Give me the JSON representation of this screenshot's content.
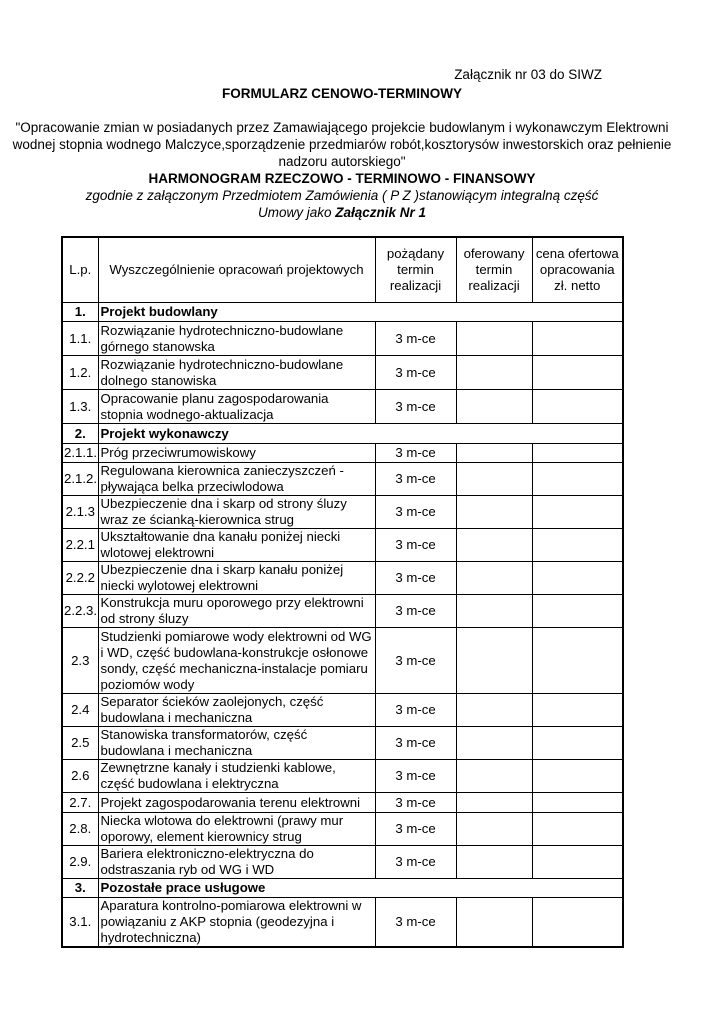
{
  "header": {
    "annex": "Załącznik nr 03 do SIWZ",
    "title": "FORMULARZ CENOWO-TERMINOWY",
    "description": "\"Opracowanie zmian w posiadanych przez Zamawiającego projekcie budowlanym i wykonawczym Elektrowni wodnej stopnia wodnego Malczyce,sporządzenie przedmiarów robót,kosztorysów inwestorskich oraz pełnienie nadzoru autorskiego\"",
    "harmonogram": "HARMONOGRAM  RZECZOWO - TERMINOWO - FINANSOWY",
    "zgodnie": "zgodnie z załączonym Przedmiotem Zamówienia ( P Z )stanowiącym integralną część",
    "umowy_prefix": "Umowy jako ",
    "umowy_bold": "Załącznik Nr 1"
  },
  "table": {
    "columns": [
      "L.p.",
      "Wyszczególnienie opracowań projektowych",
      "pożądany termin realizacji",
      "oferowany termin realizacji",
      "cena ofertowa opracowania zł. netto"
    ],
    "rows": [
      {
        "lp": "1.",
        "name": "Projekt budowlany",
        "section": true
      },
      {
        "lp": "1.1.",
        "name": "Rozwiązanie hydrotechniczno-budowlane górnego stanowska",
        "term": "3 m-ce",
        "offered": "",
        "price": ""
      },
      {
        "lp": "1.2.",
        "name": "Rozwiązanie hydrotechniczno-budowlane dolnego stanowiska",
        "term": "3 m-ce",
        "offered": "",
        "price": ""
      },
      {
        "lp": "1.3.",
        "name": "Opracowanie planu zagospodarowania stopnia wodnego-aktualizacja",
        "term": "3 m-ce",
        "offered": "",
        "price": ""
      },
      {
        "lp": "2.",
        "name": "Projekt wykonawczy",
        "section": true
      },
      {
        "lp": "2.1.1.",
        "name": "Próg przeciwrumowiskowy",
        "term": "3 m-ce",
        "offered": "",
        "price": ""
      },
      {
        "lp": "2.1.2.",
        "name": "Regulowana kierownica zanieczyszczeń - pływająca belka przeciwlodowa",
        "term": "3 m-ce",
        "offered": "",
        "price": ""
      },
      {
        "lp": "2.1.3",
        "name": "Ubezpieczenie dna i skarp od strony śluzy wraz ze ścianką-kierownica strug",
        "term": "3 m-ce",
        "offered": "",
        "price": ""
      },
      {
        "lp": "2.2.1",
        "name": "Ukształtowanie dna kanału poniżej niecki wlotowej elektrowni",
        "term": "3 m-ce",
        "offered": "",
        "price": ""
      },
      {
        "lp": "2.2.2",
        "name": "Ubezpieczenie dna i skarp kanału poniżej niecki wylotowej elektrowni",
        "term": "3 m-ce",
        "offered": "",
        "price": ""
      },
      {
        "lp": "2.2.3.",
        "name": "Konstrukcja muru oporowego przy elektrowni od strony śluzy",
        "term": "3 m-ce",
        "offered": "",
        "price": ""
      },
      {
        "lp": "2.3",
        "name": "Studzienki pomiarowe wody elektrowni od WG i WD, część budowlana-konstrukcje osłonowe sondy, część mechaniczna-instalacje pomiaru poziomów wody",
        "term": "3 m-ce",
        "offered": "",
        "price": ""
      },
      {
        "lp": "2.4",
        "name": "Separator ścieków zaolejonych, część budowlana i mechaniczna",
        "term": "3 m-ce",
        "offered": "",
        "price": ""
      },
      {
        "lp": "2.5",
        "name": "Stanowiska transformatorów, część budowlana i mechaniczna",
        "term": "3 m-ce",
        "offered": "",
        "price": ""
      },
      {
        "lp": "2.6",
        "name": "Zewnętrzne kanały i studzienki kablowe, część budowlana i elektryczna",
        "term": "3 m-ce",
        "offered": "",
        "price": ""
      },
      {
        "lp": "2.7.",
        "name": "Projekt zagospodarowania terenu elektrowni",
        "term": "3 m-ce",
        "offered": "",
        "price": ""
      },
      {
        "lp": "2.8.",
        "name": "Niecka wlotowa do elektrowni (prawy mur oporowy, element kierownicy strug",
        "term": "3 m-ce",
        "offered": "",
        "price": ""
      },
      {
        "lp": "2.9.",
        "name": "Bariera elektroniczno-elektryczna do odstraszania ryb od WG i WD",
        "term": "3 m-ce",
        "offered": "",
        "price": ""
      },
      {
        "lp": "3.",
        "name": "Pozostałe prace usługowe",
        "section": true
      },
      {
        "lp": "3.1.",
        "name": "Aparatura kontrolno-pomiarowa elektrowni w powiązaniu z AKP stopnia (geodezyjna i hydrotechniczna)",
        "term": "3 m-ce",
        "offered": "",
        "price": ""
      }
    ]
  }
}
